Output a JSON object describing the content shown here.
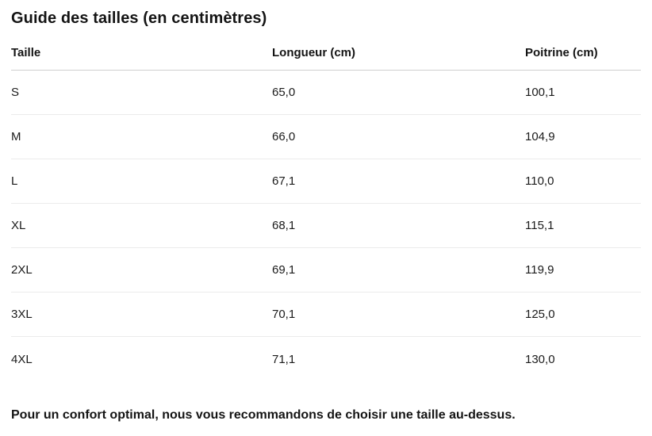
{
  "page": {
    "title": "Guide des tailles (en centimètres)",
    "note": "Pour un confort optimal, nous vous recommandons de choisir une taille au-dessus."
  },
  "table": {
    "columns": {
      "size": "Taille",
      "length": "Longueur (cm)",
      "chest": "Poitrine (cm)"
    },
    "rows": [
      {
        "size": "S",
        "length": "65,0",
        "chest": "100,1"
      },
      {
        "size": "M",
        "length": "66,0",
        "chest": "104,9"
      },
      {
        "size": "L",
        "length": "67,1",
        "chest": "110,0"
      },
      {
        "size": "XL",
        "length": "68,1",
        "chest": "115,1"
      },
      {
        "size": "2XL",
        "length": "69,1",
        "chest": "119,9"
      },
      {
        "size": "3XL",
        "length": "70,1",
        "chest": "125,0"
      },
      {
        "size": "4XL",
        "length": "71,1",
        "chest": "130,0"
      }
    ]
  },
  "colors": {
    "text": "#1b1b1b",
    "header_border": "#cfcfcf",
    "row_border": "#ebebeb",
    "background": "#ffffff"
  }
}
